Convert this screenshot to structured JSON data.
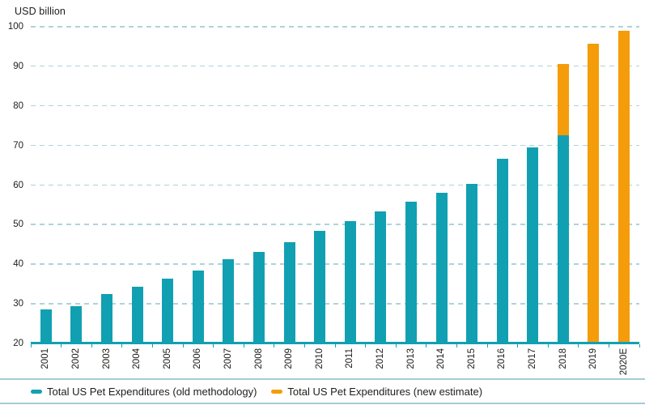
{
  "chart_data": {
    "type": "bar",
    "title": "",
    "ylabel": "USD billion",
    "xlabel": "",
    "ylim": [
      20,
      100
    ],
    "yticks": [
      100,
      90,
      80,
      70,
      60,
      50,
      40,
      30,
      20
    ],
    "grid": "horizontal-dashed",
    "legend_position": "bottom",
    "categories": [
      "2001",
      "2002",
      "2003",
      "2004",
      "2005",
      "2006",
      "2007",
      "2008",
      "2009",
      "2010",
      "2011",
      "2012",
      "2013",
      "2014",
      "2015",
      "2016",
      "2017",
      "2018",
      "2019",
      "2020E"
    ],
    "series": [
      {
        "name": "Total US Pet Expenditures (old methodology)",
        "color": "#11a0b2",
        "values": [
          28.5,
          29.5,
          32.4,
          34.4,
          36.3,
          38.5,
          41.2,
          43.2,
          45.5,
          48.35,
          50.96,
          53.33,
          55.72,
          58.04,
          60.28,
          66.75,
          69.51,
          72.56,
          null,
          null
        ]
      },
      {
        "name": "Total US Pet Expenditures (new estimate)",
        "color": "#f59c0a",
        "note": "values are bar totals; for 2018 the orange segment is stacked on top of the old-methodology bar",
        "values": [
          null,
          null,
          null,
          null,
          null,
          null,
          null,
          null,
          null,
          null,
          null,
          null,
          null,
          null,
          null,
          null,
          null,
          90.5,
          95.7,
          99.0
        ]
      }
    ],
    "colors": {
      "axis": "#11a0b2",
      "gridline": "#aed3db",
      "legend_border": "#a3ccd6",
      "text": "#1d1d1b"
    }
  }
}
